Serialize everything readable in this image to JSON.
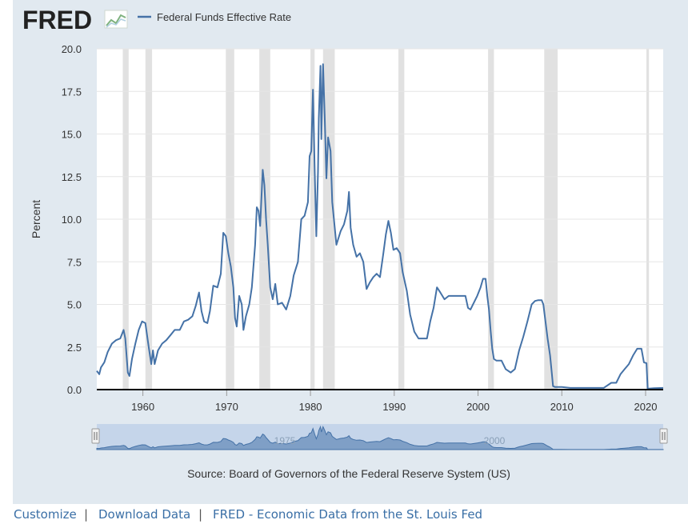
{
  "header": {
    "logo_text": "FRED",
    "legend_label": "Federal Funds Effective Rate"
  },
  "source_text": "Source: Board of Governors of the Federal Reserve System (US)",
  "footer": {
    "customize_label": "Customize",
    "separator": "|",
    "download_label": "Download Data",
    "fred_label": "FRED - Economic Data from the St. Louis Fed"
  },
  "navigator": {
    "labels": [
      "1975",
      "2000"
    ]
  },
  "colors": {
    "series": "#4572a7",
    "recession": "#e1e1e1",
    "background": "#e1e9f0"
  },
  "chart_data": {
    "type": "line",
    "title": "Federal Funds Effective Rate",
    "xlabel": "",
    "ylabel": "Percent",
    "xlim": [
      1954.5,
      2022.1
    ],
    "ylim": [
      0,
      20
    ],
    "yticks": [
      "0.0",
      "2.5",
      "5.0",
      "7.5",
      "10.0",
      "12.5",
      "15.0",
      "17.5",
      "20.0"
    ],
    "ytick_values": [
      0,
      2.5,
      5,
      7.5,
      10,
      12.5,
      15,
      17.5,
      20
    ],
    "xticks": [
      "1960",
      "1970",
      "1980",
      "1990",
      "2000",
      "2010",
      "2020"
    ],
    "xtick_values": [
      1960,
      1970,
      1980,
      1990,
      2000,
      2010,
      2020
    ],
    "recessions": [
      [
        1957.6,
        1958.3
      ],
      [
        1960.3,
        1961.1
      ],
      [
        1969.9,
        1970.9
      ],
      [
        1973.9,
        1975.2
      ],
      [
        1980.0,
        1980.5
      ],
      [
        1981.5,
        1982.9
      ],
      [
        1990.5,
        1991.2
      ],
      [
        2001.2,
        2001.9
      ],
      [
        2007.9,
        2009.5
      ],
      [
        2020.1,
        2020.4
      ]
    ],
    "series": [
      {
        "name": "Federal Funds Effective Rate",
        "x": [
          1954.5,
          1954.8,
          1955.0,
          1955.4,
          1955.8,
          1956.3,
          1956.8,
          1957.3,
          1957.7,
          1957.9,
          1958.2,
          1958.4,
          1958.7,
          1959.1,
          1959.5,
          1959.9,
          1960.3,
          1960.7,
          1961.0,
          1961.2,
          1961.4,
          1961.8,
          1962.3,
          1962.8,
          1963.3,
          1963.8,
          1964.4,
          1964.9,
          1965.4,
          1965.9,
          1966.3,
          1966.7,
          1967.0,
          1967.3,
          1967.7,
          1968.0,
          1968.4,
          1968.9,
          1969.3,
          1969.6,
          1969.9,
          1970.2,
          1970.5,
          1970.8,
          1971.0,
          1971.2,
          1971.5,
          1971.8,
          1972.0,
          1972.3,
          1972.7,
          1973.0,
          1973.4,
          1973.6,
          1973.8,
          1974.0,
          1974.3,
          1974.5,
          1974.7,
          1974.9,
          1975.2,
          1975.5,
          1975.8,
          1976.1,
          1976.6,
          1977.1,
          1977.6,
          1978.0,
          1978.5,
          1978.9,
          1979.3,
          1979.7,
          1979.9,
          1980.1,
          1980.3,
          1980.5,
          1980.7,
          1980.9,
          1981.0,
          1981.2,
          1981.3,
          1981.5,
          1981.7,
          1981.9,
          1982.1,
          1982.4,
          1982.6,
          1982.8,
          1983.1,
          1983.6,
          1984.0,
          1984.4,
          1984.6,
          1984.8,
          1985.1,
          1985.5,
          1985.9,
          1986.3,
          1986.7,
          1987.1,
          1987.5,
          1987.9,
          1988.3,
          1988.7,
          1989.0,
          1989.3,
          1989.6,
          1989.9,
          1990.3,
          1990.7,
          1991.0,
          1991.5,
          1991.9,
          1992.4,
          1992.9,
          1993.4,
          1993.9,
          1994.3,
          1994.7,
          1995.1,
          1995.5,
          1996.0,
          1996.5,
          1997.0,
          1997.5,
          1998.0,
          1998.5,
          1998.8,
          1999.1,
          1999.5,
          1999.9,
          2000.3,
          2000.6,
          2000.9,
          2001.1,
          2001.3,
          2001.5,
          2001.7,
          2001.9,
          2002.2,
          2002.8,
          2003.3,
          2003.9,
          2004.4,
          2004.9,
          2005.4,
          2005.9,
          2006.4,
          2006.8,
          2007.2,
          2007.6,
          2007.8,
          2008.0,
          2008.3,
          2008.6,
          2008.8,
          2008.95,
          2009.2,
          2010.0,
          2011.0,
          2012.0,
          2013.0,
          2014.0,
          2015.0,
          2015.9,
          2016.5,
          2017.0,
          2017.5,
          2018.0,
          2018.5,
          2019.0,
          2019.5,
          2019.8,
          2020.1,
          2020.25,
          2021.0,
          2022.1
        ],
        "values": [
          1.1,
          0.9,
          1.3,
          1.6,
          2.2,
          2.7,
          2.9,
          3.0,
          3.5,
          3.0,
          1.0,
          0.8,
          1.8,
          2.7,
          3.5,
          4.0,
          3.9,
          2.5,
          1.5,
          2.3,
          1.5,
          2.3,
          2.7,
          2.9,
          3.2,
          3.5,
          3.5,
          4.0,
          4.1,
          4.3,
          4.9,
          5.7,
          4.6,
          4.0,
          3.9,
          4.6,
          6.1,
          6.0,
          6.8,
          9.2,
          9.0,
          8.0,
          7.2,
          6.0,
          4.2,
          3.7,
          5.5,
          5.0,
          3.5,
          4.3,
          5.0,
          6.0,
          8.5,
          10.7,
          10.5,
          9.6,
          12.9,
          12.0,
          10.0,
          8.5,
          6.0,
          5.3,
          6.2,
          5.0,
          5.1,
          4.7,
          5.5,
          6.7,
          7.5,
          10.0,
          10.2,
          11.0,
          13.7,
          14.0,
          17.6,
          13.0,
          9.0,
          12.8,
          15.9,
          19.0,
          14.7,
          19.1,
          16.0,
          12.4,
          14.8,
          14.0,
          11.0,
          10.0,
          8.5,
          9.3,
          9.7,
          10.5,
          11.6,
          9.5,
          8.5,
          7.8,
          8.0,
          7.5,
          5.9,
          6.3,
          6.6,
          6.8,
          6.6,
          8.0,
          9.1,
          9.9,
          9.2,
          8.2,
          8.3,
          8.0,
          6.9,
          5.8,
          4.4,
          3.4,
          3.0,
          3.0,
          3.0,
          4.0,
          4.8,
          6.0,
          5.7,
          5.3,
          5.5,
          5.5,
          5.5,
          5.5,
          5.5,
          4.8,
          4.7,
          5.1,
          5.5,
          6.0,
          6.5,
          6.5,
          5.5,
          4.7,
          3.5,
          2.4,
          1.8,
          1.7,
          1.7,
          1.2,
          1.0,
          1.2,
          2.3,
          3.1,
          4.0,
          5.0,
          5.2,
          5.25,
          5.25,
          5.0,
          4.2,
          3.0,
          2.0,
          1.0,
          0.2,
          0.15,
          0.15,
          0.1,
          0.1,
          0.1,
          0.1,
          0.1,
          0.4,
          0.4,
          0.9,
          1.2,
          1.5,
          2.0,
          2.4,
          2.4,
          1.6,
          1.55,
          0.05,
          0.08,
          0.1
        ]
      }
    ]
  }
}
